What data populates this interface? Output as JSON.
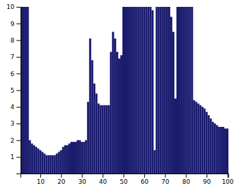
{
  "chart_data": {
    "type": "bar",
    "x": [
      1,
      2,
      3,
      4,
      5,
      6,
      7,
      8,
      9,
      10,
      11,
      12,
      13,
      14,
      15,
      16,
      17,
      18,
      19,
      20,
      21,
      22,
      23,
      24,
      25,
      26,
      27,
      28,
      29,
      30,
      31,
      32,
      33,
      34,
      35,
      36,
      37,
      38,
      39,
      40,
      41,
      42,
      43,
      44,
      45,
      46,
      47,
      48,
      49,
      50,
      51,
      52,
      53,
      54,
      55,
      56,
      57,
      58,
      59,
      60,
      61,
      62,
      63,
      64,
      65,
      66,
      67,
      68,
      69,
      70,
      71,
      72,
      73,
      74,
      75,
      76,
      77,
      78,
      79,
      80,
      81,
      82,
      83,
      84,
      85,
      86,
      87,
      88,
      89,
      90,
      91,
      92,
      93,
      94,
      95,
      96,
      97,
      98,
      99,
      100
    ],
    "values": [
      10.0,
      10.0,
      10.0,
      10.0,
      2.0,
      1.8,
      1.7,
      1.6,
      1.5,
      1.4,
      1.3,
      1.2,
      1.1,
      1.1,
      1.1,
      1.1,
      1.1,
      1.2,
      1.3,
      1.4,
      1.6,
      1.7,
      1.7,
      1.8,
      1.9,
      1.9,
      1.9,
      2.0,
      2.0,
      1.9,
      1.9,
      2.0,
      4.3,
      8.1,
      6.8,
      5.4,
      4.8,
      4.2,
      4.1,
      4.1,
      4.1,
      4.1,
      4.1,
      7.3,
      8.5,
      8.1,
      7.3,
      6.9,
      7.1,
      10.0,
      10.0,
      10.0,
      10.0,
      10.0,
      10.0,
      10.0,
      10.0,
      10.0,
      10.0,
      10.0,
      10.0,
      10.0,
      10.0,
      9.8,
      1.4,
      10.0,
      10.0,
      10.0,
      10.0,
      10.0,
      10.0,
      10.0,
      9.4,
      8.5,
      4.5,
      10.0,
      10.0,
      10.0,
      10.0,
      10.0,
      10.0,
      10.0,
      10.0,
      4.4,
      4.3,
      4.2,
      4.1,
      4.0,
      3.9,
      3.7,
      3.5,
      3.3,
      3.1,
      3.0,
      2.9,
      2.8,
      2.8,
      2.8,
      2.7,
      2.7
    ],
    "color": "#1a1a6e",
    "xlim": [
      0.5,
      100.5
    ],
    "xticks": [
      10,
      20,
      30,
      40,
      50,
      60,
      70,
      80,
      90,
      100
    ],
    "ylim": [
      0,
      10
    ],
    "yticks": [
      1,
      2,
      3,
      4,
      5,
      6,
      7,
      8,
      9,
      10
    ],
    "grid": false
  }
}
